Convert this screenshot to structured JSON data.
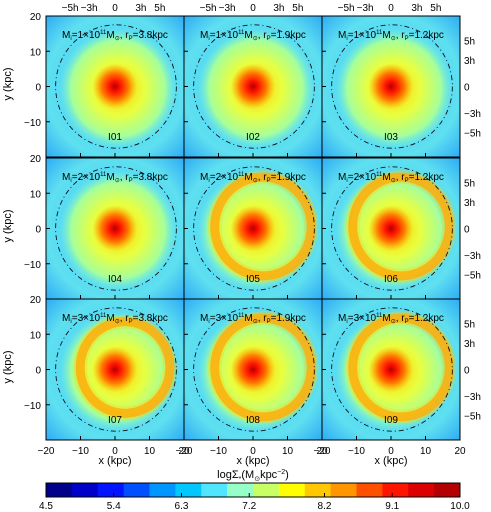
{
  "chart_data": {
    "type": "heatmap",
    "xlabel": "x (kpc)",
    "ylabel": "y (kpc)",
    "xlim": [
      -20,
      20
    ],
    "ylim": [
      -20,
      20
    ],
    "x_ticks": [
      "−20",
      "−10",
      "0",
      "10",
      "20"
    ],
    "y_ticks": [
      "−10",
      "0",
      "10",
      "20"
    ],
    "top_ticks": [
      "−5h",
      "−3h",
      "0",
      "3h",
      "5h"
    ],
    "right_ticks": [
      "5h",
      "3h",
      "0",
      "−3h",
      "−5h"
    ],
    "colorbar": {
      "label": "logΣ",
      "label_sub": "*",
      "label_unit": "(M",
      "label_sun": "⊙",
      "label_kpc": "kpc",
      "label_exp": "−2",
      "label_close": ")",
      "min": 4.5,
      "max": 10.0,
      "ticks": [
        "4.5",
        "5.4",
        "6.3",
        "7.2",
        "8.2",
        "9.1",
        "10.0"
      ],
      "colors": [
        "#00008b",
        "#0000c8",
        "#0014ff",
        "#0050ff",
        "#0096ff",
        "#00c8ff",
        "#50e6ff",
        "#96ffc8",
        "#c8ff64",
        "#ffff00",
        "#ffc800",
        "#ff9600",
        "#ff5000",
        "#ff1400",
        "#dc0000",
        "#b40000"
      ]
    },
    "panels": [
      {
        "id": "I01",
        "m_prefix": "M",
        "m_sub": "i",
        "m_value": "=1×10",
        "m_exp": "11",
        "sun": "M",
        "sun_sub": "⊙",
        "rp_label": ", r",
        "rp_sub": "P",
        "rp_value": "=3.8kpc",
        "ring": 0.0
      },
      {
        "id": "I02",
        "m_prefix": "M",
        "m_sub": "i",
        "m_value": "=1×10",
        "m_exp": "11",
        "sun": "M",
        "sun_sub": "⊙",
        "rp_label": ", r",
        "rp_sub": "P",
        "rp_value": "=1.9kpc",
        "ring": 0.0
      },
      {
        "id": "I03",
        "m_prefix": "M",
        "m_sub": "i",
        "m_value": "=1×10",
        "m_exp": "11",
        "sun": "M",
        "sun_sub": "⊙",
        "rp_label": ", r",
        "rp_sub": "P",
        "rp_value": "=1.2kpc",
        "ring": 0.0
      },
      {
        "id": "I04",
        "m_prefix": "M",
        "m_sub": "i",
        "m_value": "=2×10",
        "m_exp": "11",
        "sun": "M",
        "sun_sub": "⊙",
        "rp_label": ", r",
        "rp_sub": "P",
        "rp_value": "=3.8kpc",
        "ring": 0.0
      },
      {
        "id": "I05",
        "m_prefix": "M",
        "m_sub": "i",
        "m_value": "=2×10",
        "m_exp": "11",
        "sun": "M",
        "sun_sub": "⊙",
        "rp_label": ", r",
        "rp_sub": "P",
        "rp_value": "=1.9kpc",
        "ring": 14.0
      },
      {
        "id": "I06",
        "m_prefix": "M",
        "m_sub": "i",
        "m_value": "=2×10",
        "m_exp": "11",
        "sun": "M",
        "sun_sub": "⊙",
        "rp_label": ", r",
        "rp_sub": "P",
        "rp_value": "=1.2kpc",
        "ring": 14.0
      },
      {
        "id": "I07",
        "m_prefix": "M",
        "m_sub": "i",
        "m_value": "=3×10",
        "m_exp": "11",
        "sun": "M",
        "sun_sub": "⊙",
        "rp_label": ", r",
        "rp_sub": "P",
        "rp_value": "=3.8kpc",
        "ring": 13.0
      },
      {
        "id": "I08",
        "m_prefix": "M",
        "m_sub": "i",
        "m_value": "=3×10",
        "m_exp": "11",
        "sun": "M",
        "sun_sub": "⊙",
        "rp_label": ", r",
        "rp_sub": "P",
        "rp_value": "=1.9kpc",
        "ring": 14.0
      },
      {
        "id": "I09",
        "m_prefix": "M",
        "m_sub": "i",
        "m_value": "=3×10",
        "m_exp": "11",
        "sun": "M",
        "sun_sub": "⊙",
        "rp_label": ", r",
        "rp_sub": "P",
        "rp_value": "=1.2kpc",
        "ring": 14.0
      }
    ]
  }
}
